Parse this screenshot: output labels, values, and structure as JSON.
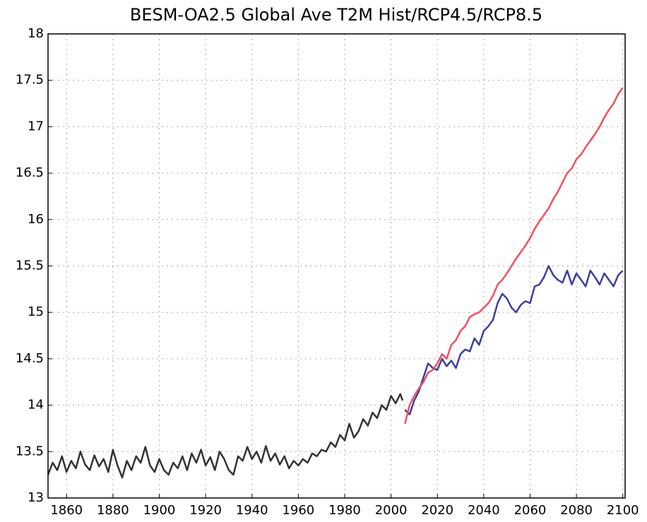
{
  "chart_data": {
    "type": "line",
    "title": "BESM-OA2.5 Global Ave T2M Hist/RCP4.5/RCP8.5",
    "xlim": [
      1852,
      2101
    ],
    "ylim": [
      13,
      18
    ],
    "xticks": [
      1860,
      1880,
      1900,
      1920,
      1940,
      1960,
      1980,
      2000,
      2020,
      2040,
      2060,
      2080,
      2100
    ],
    "yticks": [
      13,
      13.5,
      14,
      14.5,
      15,
      15.5,
      16,
      16.5,
      17,
      17.5,
      18
    ],
    "grid": true,
    "series": [
      {
        "color": "#333333",
        "x": [
          1852,
          1854,
          1856,
          1858,
          1860,
          1862,
          1864,
          1866,
          1868,
          1870,
          1872,
          1874,
          1876,
          1878,
          1880,
          1882,
          1884,
          1886,
          1888,
          1890,
          1892,
          1894,
          1896,
          1898,
          1900,
          1902,
          1904,
          1906,
          1908,
          1910,
          1912,
          1914,
          1916,
          1918,
          1920,
          1922,
          1924,
          1926,
          1928,
          1930,
          1932,
          1934,
          1936,
          1938,
          1940,
          1942,
          1944,
          1946,
          1948,
          1950,
          1952,
          1954,
          1956,
          1958,
          1960,
          1962,
          1964,
          1966,
          1968,
          1970,
          1972,
          1974,
          1976,
          1978,
          1980,
          1982,
          1984,
          1986,
          1988,
          1990,
          1992,
          1994,
          1996,
          1998,
          2000,
          2002,
          2004,
          2005
        ],
        "values": [
          13.25,
          13.38,
          13.3,
          13.45,
          13.28,
          13.4,
          13.32,
          13.5,
          13.36,
          13.3,
          13.46,
          13.34,
          13.42,
          13.28,
          13.52,
          13.35,
          13.22,
          13.4,
          13.3,
          13.45,
          13.38,
          13.55,
          13.35,
          13.28,
          13.42,
          13.3,
          13.25,
          13.38,
          13.32,
          13.45,
          13.3,
          13.48,
          13.38,
          13.52,
          13.35,
          13.44,
          13.3,
          13.5,
          13.42,
          13.3,
          13.25,
          13.45,
          13.4,
          13.55,
          13.42,
          13.5,
          13.38,
          13.56,
          13.4,
          13.48,
          13.36,
          13.45,
          13.32,
          13.4,
          13.35,
          13.42,
          13.38,
          13.48,
          13.45,
          13.52,
          13.5,
          13.6,
          13.55,
          13.68,
          13.62,
          13.8,
          13.65,
          13.72,
          13.85,
          13.78,
          13.92,
          13.86,
          14.0,
          13.95,
          14.1,
          14.02,
          14.12,
          14.05
        ]
      },
      {
        "color": "#3a40a0",
        "x": [
          2006,
          2008,
          2010,
          2012,
          2014,
          2016,
          2018,
          2020,
          2022,
          2024,
          2026,
          2028,
          2030,
          2032,
          2034,
          2036,
          2038,
          2040,
          2042,
          2044,
          2046,
          2048,
          2050,
          2052,
          2054,
          2056,
          2058,
          2060,
          2062,
          2064,
          2066,
          2068,
          2070,
          2072,
          2074,
          2076,
          2078,
          2080,
          2082,
          2084,
          2086,
          2088,
          2090,
          2092,
          2094,
          2096,
          2098,
          2100
        ],
        "values": [
          13.95,
          13.9,
          14.05,
          14.15,
          14.3,
          14.45,
          14.4,
          14.38,
          14.5,
          14.42,
          14.48,
          14.4,
          14.55,
          14.6,
          14.58,
          14.72,
          14.65,
          14.8,
          14.85,
          14.92,
          15.1,
          15.2,
          15.15,
          15.05,
          15.0,
          15.08,
          15.12,
          15.1,
          15.28,
          15.3,
          15.38,
          15.5,
          15.4,
          15.35,
          15.32,
          15.45,
          15.3,
          15.42,
          15.35,
          15.28,
          15.45,
          15.38,
          15.3,
          15.42,
          15.35,
          15.28,
          15.4,
          15.45
        ]
      },
      {
        "color": "#f0505f",
        "x": [
          2006,
          2008,
          2010,
          2012,
          2014,
          2016,
          2018,
          2020,
          2022,
          2024,
          2026,
          2028,
          2030,
          2032,
          2034,
          2036,
          2038,
          2040,
          2042,
          2044,
          2046,
          2048,
          2050,
          2052,
          2054,
          2056,
          2058,
          2060,
          2062,
          2064,
          2066,
          2068,
          2070,
          2072,
          2074,
          2076,
          2078,
          2080,
          2082,
          2084,
          2086,
          2088,
          2090,
          2092,
          2094,
          2096,
          2098,
          2100
        ],
        "values": [
          13.8,
          14.0,
          14.1,
          14.18,
          14.25,
          14.35,
          14.38,
          14.45,
          14.55,
          14.5,
          14.65,
          14.7,
          14.8,
          14.85,
          14.95,
          14.98,
          15.0,
          15.05,
          15.1,
          15.18,
          15.3,
          15.35,
          15.42,
          15.5,
          15.58,
          15.65,
          15.72,
          15.8,
          15.9,
          15.98,
          16.05,
          16.12,
          16.22,
          16.3,
          16.4,
          16.5,
          16.55,
          16.65,
          16.7,
          16.78,
          16.85,
          16.92,
          17.0,
          17.1,
          17.18,
          17.25,
          17.35,
          17.42
        ]
      }
    ]
  }
}
